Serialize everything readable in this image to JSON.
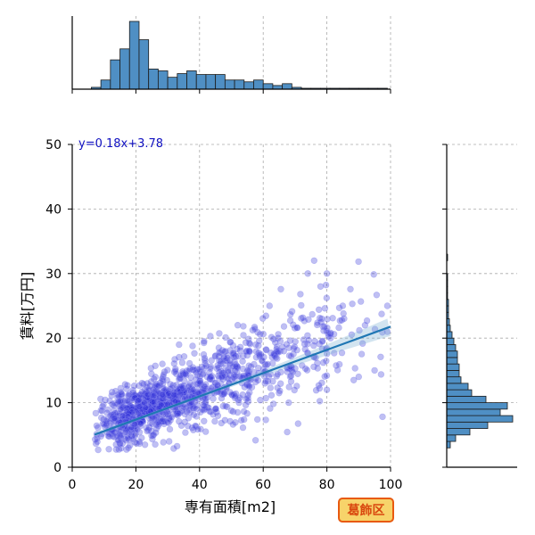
{
  "chart_data": {
    "type": "scatter",
    "xlabel": "専有面積[m2]",
    "ylabel": "賃料[万円]",
    "xlim": [
      0,
      100
    ],
    "ylim": [
      0,
      50
    ],
    "x_ticks": [
      0,
      20,
      40,
      60,
      80,
      100
    ],
    "y_ticks": [
      0,
      10,
      20,
      30,
      40,
      50
    ],
    "grid": true,
    "annotation": "y=0.18x+3.78",
    "badge": "葛飾区",
    "regression": {
      "slope": 0.18,
      "intercept": 3.78,
      "x_range": [
        7,
        100
      ]
    },
    "colors": {
      "points": "#2b2bd6",
      "regression": "#1f77b4",
      "histogram": "#4f8fc4"
    },
    "scatter_clusters": [
      {
        "x_center": 20,
        "y_center": 8.5,
        "x_spread": 6,
        "y_spread": 2.2,
        "count": 420
      },
      {
        "x_center": 32,
        "y_center": 10.5,
        "x_spread": 6,
        "y_spread": 2.6,
        "count": 260
      },
      {
        "x_center": 48,
        "y_center": 13.5,
        "x_spread": 7,
        "y_spread": 3.2,
        "count": 240
      },
      {
        "x_center": 65,
        "y_center": 17,
        "x_spread": 9,
        "y_spread": 4,
        "count": 160
      },
      {
        "x_center": 82,
        "y_center": 20,
        "x_spread": 9,
        "y_spread": 4.5,
        "count": 60
      }
    ],
    "outlier_points": [
      [
        76,
        32
      ],
      [
        74,
        30
      ],
      [
        78,
        28
      ],
      [
        80,
        30
      ],
      [
        62,
        25
      ],
      [
        85,
        25
      ],
      [
        92,
        22
      ],
      [
        99,
        25
      ],
      [
        95,
        15
      ],
      [
        90,
        14
      ],
      [
        80,
        12
      ],
      [
        68,
        10
      ],
      [
        45,
        9
      ],
      [
        52,
        22
      ],
      [
        99,
        21
      ]
    ],
    "marginal_x": {
      "bin_edges": [
        6,
        9,
        12,
        15,
        18,
        21,
        24,
        27,
        30,
        33,
        36,
        39,
        42,
        45,
        48,
        51,
        54,
        57,
        60,
        63,
        66,
        69,
        72,
        75,
        78,
        81,
        84,
        87,
        90,
        93,
        96,
        99,
        100
      ],
      "counts": [
        2,
        10,
        32,
        44,
        74,
        54,
        22,
        20,
        13,
        17,
        20,
        16,
        16,
        16,
        10,
        10,
        8,
        10,
        6,
        4,
        6,
        2,
        1,
        1,
        1,
        1,
        1,
        1,
        1,
        1,
        1,
        0
      ]
    },
    "marginal_y": {
      "bin_edges": [
        3,
        4,
        5,
        6,
        7,
        8,
        9,
        10,
        11,
        12,
        13,
        14,
        15,
        16,
        17,
        18,
        19,
        20,
        21,
        22,
        23,
        24,
        25,
        26,
        27,
        28,
        29,
        30,
        31,
        32,
        33
      ],
      "counts": [
        4,
        10,
        26,
        46,
        74,
        60,
        68,
        44,
        28,
        24,
        16,
        14,
        14,
        12,
        12,
        10,
        8,
        6,
        4,
        3,
        2,
        2,
        2,
        1,
        1,
        1,
        1,
        0,
        0,
        1
      ]
    }
  }
}
